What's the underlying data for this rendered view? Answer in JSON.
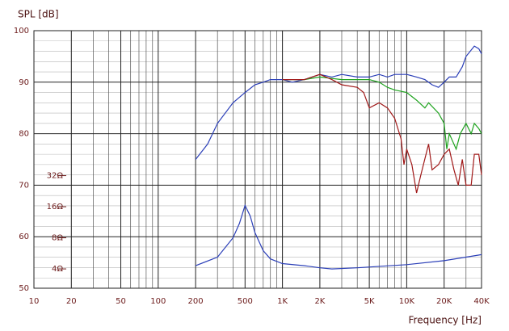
{
  "chart_data": {
    "type": "line",
    "y_label": "SPL [dB]",
    "x_label": "Frequency [Hz]",
    "xlog": true,
    "y2log": true,
    "grid": true,
    "xlim": [
      10,
      40000
    ],
    "ylim": [
      50,
      100
    ],
    "y2lim": [
      2.6,
      811
    ],
    "xticks": [
      10,
      20,
      50,
      100,
      200,
      500,
      {
        "value": 1000,
        "label": "1K"
      },
      {
        "value": 2000,
        "label": "2K"
      },
      {
        "value": 5000,
        "label": "5K"
      },
      {
        "value": 10000,
        "label": "10K"
      },
      {
        "value": 20000,
        "label": "20K"
      },
      {
        "value": 40000,
        "label": "40K"
      }
    ],
    "xminorticks": [
      30,
      40,
      60,
      70,
      80,
      90,
      300,
      400,
      600,
      700,
      800,
      900,
      3000,
      4000,
      6000,
      7000,
      8000,
      9000,
      30000
    ],
    "yticks": [
      50,
      60,
      70,
      80,
      90,
      100
    ],
    "yminorticks": [
      52,
      54,
      56,
      58,
      62,
      64,
      66,
      68,
      72,
      74,
      76,
      78,
      82,
      84,
      86,
      88,
      92,
      94,
      96,
      98
    ],
    "y2ticks": [
      {
        "value": 4,
        "label": "4Ω"
      },
      {
        "value": 8,
        "label": "8Ω"
      },
      {
        "value": 16,
        "label": "16Ω"
      },
      {
        "value": 32,
        "label": "32Ω"
      }
    ],
    "series": [
      {
        "color": "#2b3fb8",
        "x": [
          200,
          250,
          300,
          400,
          500,
          600,
          700,
          800,
          1000,
          1200,
          1500,
          2000,
          2500,
          3000,
          4000,
          5000,
          6000,
          7000,
          8000,
          10000,
          12000,
          14000,
          16000,
          18000,
          20000,
          22000,
          25000,
          28000,
          30000,
          35000,
          38000,
          40000
        ],
        "values": [
          75,
          78,
          82,
          86,
          88,
          89.5,
          90,
          90.5,
          90.5,
          90,
          90.5,
          91.5,
          91,
          91.5,
          91,
          91,
          91.5,
          91,
          91.5,
          91.5,
          91,
          90.5,
          89.5,
          89,
          90,
          91,
          91,
          93,
          95,
          97,
          96.5,
          95.5
        ]
      },
      {
        "color": "#1fa31f",
        "x": [
          1000,
          1500,
          2000,
          3000,
          4000,
          5000,
          6000,
          7000,
          8000,
          10000,
          12000,
          14000,
          15000,
          18000,
          20000,
          21000,
          22000,
          25000,
          27000,
          30000,
          33000,
          35000,
          38000,
          40000
        ],
        "values": [
          90.5,
          90.5,
          91,
          90.5,
          90.5,
          90.5,
          90,
          89,
          88.5,
          88,
          86.5,
          85,
          86,
          84,
          82,
          77,
          80,
          77,
          80,
          82,
          80,
          82,
          81,
          80
        ]
      },
      {
        "color": "#a01818",
        "x": [
          1000,
          1500,
          2000,
          2500,
          3000,
          4000,
          4500,
          5000,
          6000,
          7000,
          8000,
          9000,
          9500,
          10000,
          11000,
          12000,
          13000,
          15000,
          16000,
          18000,
          20000,
          22000,
          24000,
          26000,
          28000,
          30000,
          33000,
          35000,
          38000,
          40000
        ],
        "values": [
          90.5,
          90.5,
          91.5,
          90.5,
          89.5,
          89,
          88,
          85,
          86,
          85,
          83,
          79,
          74,
          77,
          74,
          68.5,
          72,
          78,
          73,
          74,
          76,
          77,
          73,
          70,
          75,
          70,
          70,
          76,
          76,
          72
        ]
      },
      {
        "color": "#2b3fb8",
        "axis": "y2",
        "x": [
          200,
          300,
          400,
          450,
          500,
          550,
          600,
          700,
          800,
          1000,
          1500,
          2000,
          2500,
          4000,
          10000,
          20000,
          40000
        ],
        "values": [
          4.3,
          5.2,
          8,
          11,
          16.5,
          13,
          9,
          6,
          5,
          4.5,
          4.3,
          4.1,
          4.0,
          4.1,
          4.4,
          4.8,
          5.5
        ]
      }
    ]
  }
}
